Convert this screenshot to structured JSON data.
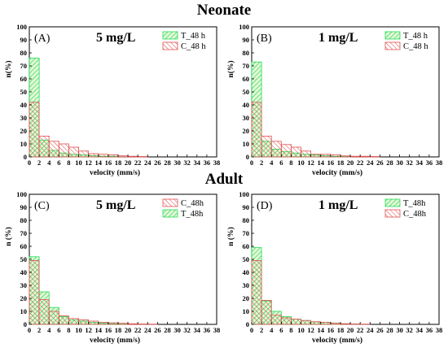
{
  "row_titles": {
    "top": "Neonate",
    "bottom": "Adult"
  },
  "colors": {
    "T": "#22dd55",
    "C": "#e05050"
  },
  "chart_data": [
    {
      "id": "A",
      "type": "bar",
      "panel_label": "(A)",
      "concentration": "5 mg/L",
      "xlabel": "velocity (mm/s)",
      "ylabel": "n(%)",
      "xlim": [
        0,
        38
      ],
      "ylim": [
        0,
        100
      ],
      "x_ticks": [
        0,
        2,
        4,
        6,
        8,
        10,
        12,
        14,
        16,
        18,
        20,
        22,
        24,
        26,
        28,
        30,
        32,
        34,
        36,
        38
      ],
      "y_ticks": [
        0,
        10,
        20,
        30,
        40,
        50,
        60,
        70,
        80,
        90,
        100
      ],
      "bin_width": 2,
      "legend_position": "top-right",
      "legend_order": [
        "T",
        "C"
      ],
      "series": [
        {
          "key": "T",
          "name": "T_48 h",
          "values": [
            76,
            13,
            5,
            3,
            2,
            1.5,
            1,
            0.5,
            0.5,
            0,
            0,
            0,
            0,
            0,
            0,
            0,
            0,
            0,
            0
          ]
        },
        {
          "key": "C",
          "name": "C_48 h",
          "values": [
            42,
            16,
            12,
            10,
            7.5,
            4.5,
            2.5,
            2,
            1.5,
            0.8,
            0.5,
            0.3,
            0,
            0,
            0,
            0,
            0,
            0,
            0
          ]
        }
      ]
    },
    {
      "id": "B",
      "type": "bar",
      "panel_label": "(B)",
      "concentration": "1 mg/L",
      "xlabel": "velocity (mm/s)",
      "ylabel": "n(%)",
      "xlim": [
        0,
        38
      ],
      "ylim": [
        0,
        100
      ],
      "x_ticks": [
        0,
        2,
        4,
        6,
        8,
        10,
        12,
        14,
        16,
        18,
        20,
        22,
        24,
        26,
        28,
        30,
        32,
        34,
        36,
        38
      ],
      "y_ticks": [
        0,
        10,
        20,
        30,
        40,
        50,
        60,
        70,
        80,
        90,
        100
      ],
      "bin_width": 2,
      "legend_position": "top-right",
      "legend_order": [
        "T",
        "C"
      ],
      "series": [
        {
          "key": "T",
          "name": "T_48 h",
          "values": [
            73,
            12,
            6,
            4,
            3,
            2,
            1.5,
            1,
            0.5,
            0.3,
            0,
            0,
            0,
            0,
            0,
            0,
            0,
            0,
            0
          ]
        },
        {
          "key": "C",
          "name": "C_48 h",
          "values": [
            42,
            16,
            12,
            9.5,
            7.5,
            4.5,
            2,
            2,
            1.5,
            0.8,
            0.5,
            0.5,
            0.3,
            0,
            0,
            0,
            0,
            0,
            0
          ]
        }
      ]
    },
    {
      "id": "C",
      "type": "bar",
      "panel_label": "(C)",
      "concentration": "5 mg/L",
      "xlabel": "velocity (mm/s)",
      "ylabel": "n (%)",
      "xlim": [
        0,
        38
      ],
      "ylim": [
        0,
        100
      ],
      "x_ticks": [
        0,
        2,
        4,
        6,
        8,
        10,
        12,
        14,
        16,
        18,
        20,
        22,
        24,
        26,
        28,
        30,
        32,
        34,
        36,
        38
      ],
      "y_ticks": [
        0,
        10,
        20,
        30,
        40,
        50,
        60,
        70,
        80,
        90,
        100
      ],
      "bin_width": 2,
      "legend_position": "top-right",
      "legend_order": [
        "C",
        "T"
      ],
      "series": [
        {
          "key": "T",
          "name": "T_48h",
          "values": [
            52,
            25,
            13,
            6,
            3.5,
            2.5,
            1.5,
            1,
            0.5,
            0.3,
            0,
            0,
            0,
            0,
            0,
            0,
            0,
            0,
            0
          ]
        },
        {
          "key": "C",
          "name": "C_48h",
          "values": [
            49,
            19,
            10,
            6.5,
            4.5,
            3.5,
            2.5,
            1.5,
            1.2,
            0.8,
            0.5,
            0.3,
            0.2,
            0,
            0,
            0,
            0,
            0,
            0
          ]
        }
      ]
    },
    {
      "id": "D",
      "type": "bar",
      "panel_label": "(D)",
      "concentration": "1 mg/L",
      "xlabel": "velocity (mm/s)",
      "ylabel": "n (%)",
      "xlim": [
        0,
        38
      ],
      "ylim": [
        0,
        100
      ],
      "x_ticks": [
        0,
        2,
        4,
        6,
        8,
        10,
        12,
        14,
        16,
        18,
        20,
        22,
        24,
        26,
        28,
        30,
        32,
        34,
        36,
        38
      ],
      "y_ticks": [
        0,
        10,
        20,
        30,
        40,
        50,
        60,
        70,
        80,
        90,
        100
      ],
      "bin_width": 2,
      "legend_position": "top-right",
      "legend_order": [
        "T",
        "C"
      ],
      "series": [
        {
          "key": "T",
          "name": "T_48h",
          "values": [
            59,
            18,
            10,
            6,
            4,
            3,
            2,
            1.5,
            1,
            0.5,
            0.3,
            0,
            0,
            0,
            0,
            0,
            0,
            0,
            0
          ]
        },
        {
          "key": "C",
          "name": "C_48h",
          "values": [
            49,
            18.5,
            7,
            5,
            4,
            3,
            2,
            1.5,
            1,
            0.5,
            0.3,
            0.2,
            0,
            0,
            0,
            0,
            0,
            0,
            0
          ]
        }
      ]
    }
  ]
}
